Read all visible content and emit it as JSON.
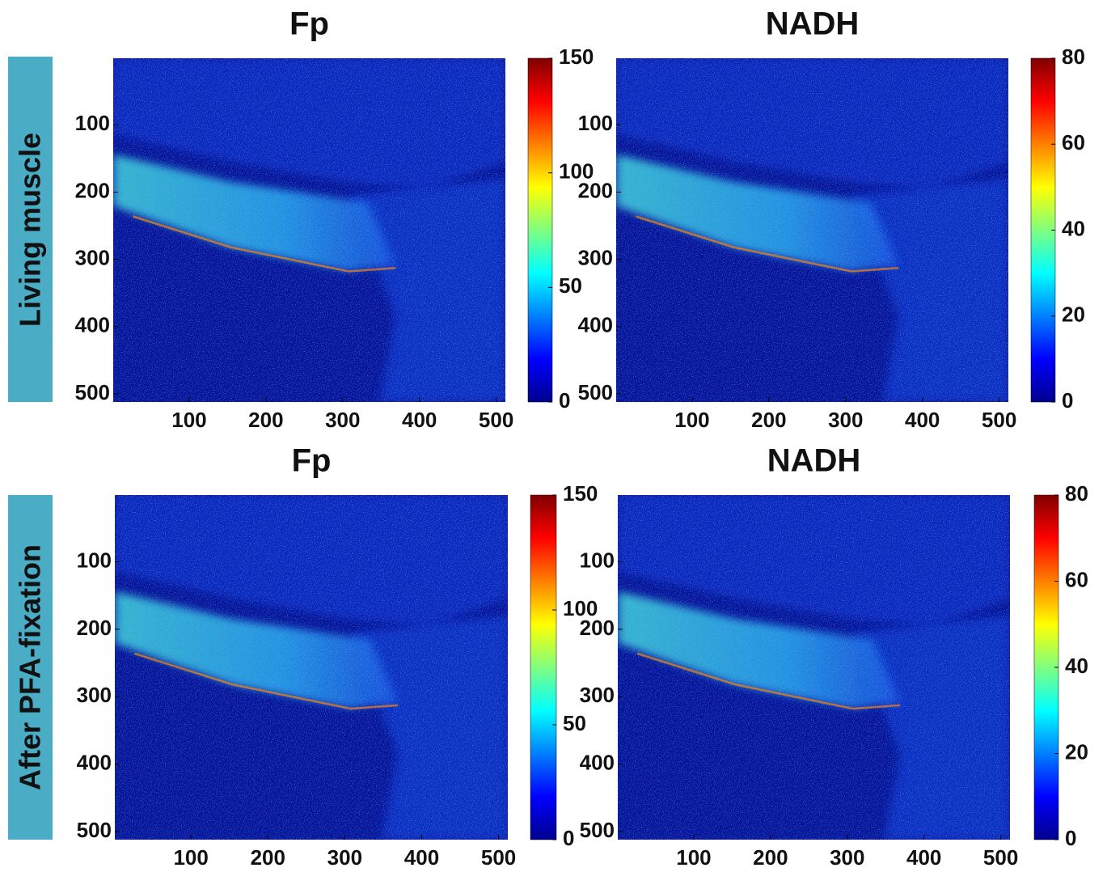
{
  "row_labels": [
    "Living muscle",
    "After PFA-fixation"
  ],
  "chart_data": [
    {
      "type": "heatmap",
      "title": "Fp",
      "xlim": [
        1,
        512
      ],
      "ylim": [
        1,
        512
      ],
      "xticks": [
        100,
        200,
        300,
        400,
        500
      ],
      "yticks": [
        100,
        200,
        300,
        400,
        500
      ],
      "clim": [
        0,
        150
      ],
      "cticks": [
        0,
        50,
        100,
        150
      ]
    },
    {
      "type": "heatmap",
      "title": "NADH",
      "xlim": [
        1,
        512
      ],
      "ylim": [
        1,
        512
      ],
      "xticks": [
        100,
        200,
        300,
        400,
        500
      ],
      "yticks": [
        100,
        200,
        300,
        400,
        500
      ],
      "clim": [
        0,
        80
      ],
      "cticks": [
        0,
        20,
        40,
        60,
        80
      ]
    },
    {
      "type": "heatmap",
      "title": "Fp",
      "xlim": [
        1,
        512
      ],
      "ylim": [
        1,
        512
      ],
      "xticks": [
        100,
        200,
        300,
        400,
        500
      ],
      "yticks": [
        100,
        200,
        300,
        400,
        500
      ],
      "clim": [
        0,
        150
      ],
      "cticks": [
        0,
        50,
        100,
        150
      ]
    },
    {
      "type": "heatmap",
      "title": "NADH",
      "xlim": [
        1,
        512
      ],
      "ylim": [
        1,
        512
      ],
      "xticks": [
        100,
        200,
        300,
        400,
        500
      ],
      "yticks": [
        100,
        200,
        300,
        400,
        500
      ],
      "clim": [
        0,
        80
      ],
      "cticks": [
        0,
        20,
        40,
        60,
        80
      ]
    }
  ]
}
